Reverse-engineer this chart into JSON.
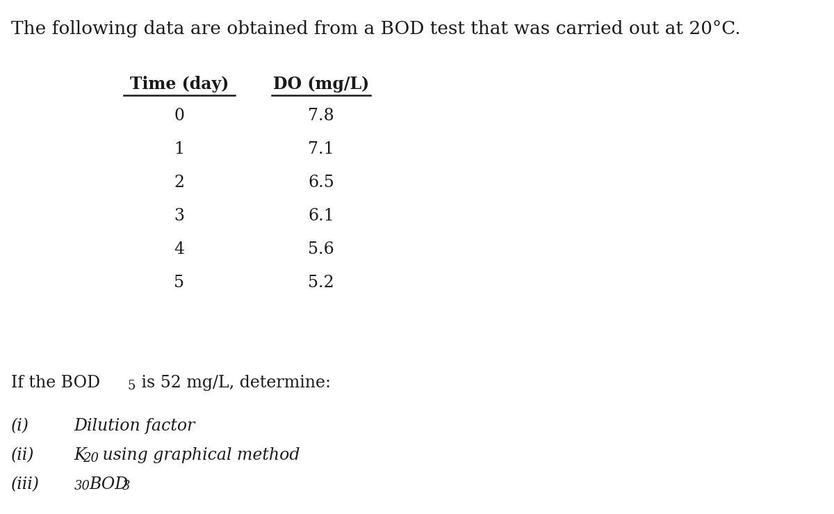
{
  "title_part1": "The following data are obtained from a BOD test that was carried out at 20",
  "title_deg": "°C.",
  "col1_header": "Time (day)",
  "col2_header": "DO (mg/L)",
  "time_days": [
    "0",
    "1",
    "2",
    "3",
    "4",
    "5"
  ],
  "do_values": [
    "7.8",
    "7.1",
    "6.5",
    "6.1",
    "5.6",
    "5.2"
  ],
  "background_color": "#ffffff",
  "text_color": "#1a1a1a",
  "font_size_title": 19,
  "font_size_table": 17,
  "font_size_body": 17,
  "font_size_sub": 13
}
